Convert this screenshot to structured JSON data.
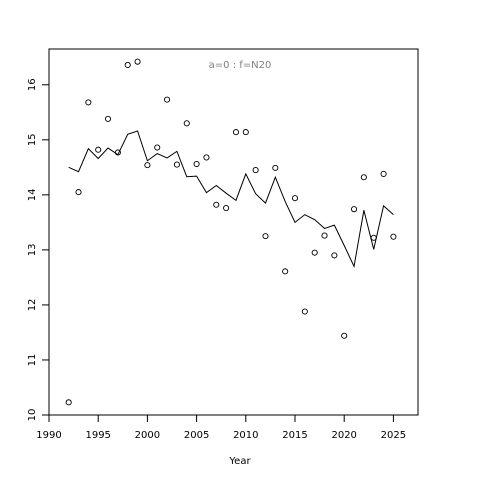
{
  "chart_data": {
    "type": "line",
    "title": "",
    "annotation": "a=0  :  f=N20",
    "xlabel": "Year",
    "ylabel": "",
    "xlim": [
      1990,
      2027.5
    ],
    "ylim": [
      10,
      16.65
    ],
    "xticks": [
      1990,
      1995,
      2000,
      2005,
      2010,
      2015,
      2020,
      2025
    ],
    "yticks": [
      10,
      11,
      12,
      13,
      14,
      15,
      16
    ],
    "grid": false,
    "legend": "none",
    "series": [
      {
        "kind": "points",
        "x": [
          1992,
          1993,
          1994,
          1995,
          1996,
          1997,
          1998,
          1999,
          2000,
          2001,
          2002,
          2003,
          2004,
          2005,
          2006,
          2007,
          2008,
          2009,
          2010,
          2011,
          2012,
          2013,
          2014,
          2015,
          2016,
          2017,
          2018,
          2019,
          2020,
          2021,
          2022,
          2023,
          2024,
          2025
        ],
        "y": [
          10.23,
          14.05,
          15.68,
          14.82,
          15.38,
          14.77,
          16.36,
          16.42,
          14.54,
          14.86,
          15.73,
          14.55,
          15.3,
          14.56,
          14.68,
          13.82,
          13.76,
          15.14,
          15.14,
          14.45,
          13.25,
          14.49,
          12.61,
          13.94,
          11.88,
          12.95,
          13.26,
          12.9,
          11.44,
          13.74,
          14.32,
          13.22,
          14.38,
          13.24
        ]
      },
      {
        "kind": "line",
        "x": [
          1992,
          1993,
          1994,
          1995,
          1996,
          1997,
          1998,
          1999,
          2000,
          2001,
          2002,
          2003,
          2004,
          2005,
          2006,
          2007,
          2008,
          2009,
          2010,
          2011,
          2012,
          2013,
          2014,
          2015,
          2016,
          2017,
          2018,
          2019,
          2020,
          2021,
          2022,
          2023,
          2024,
          2025
        ],
        "y": [
          14.5,
          14.42,
          14.84,
          14.66,
          14.85,
          14.73,
          15.1,
          15.16,
          14.62,
          14.75,
          14.67,
          14.79,
          14.33,
          14.34,
          14.04,
          14.17,
          14.03,
          13.9,
          14.38,
          14.02,
          13.85,
          14.32,
          13.88,
          13.5,
          13.64,
          13.55,
          13.39,
          13.45,
          13.08,
          12.7,
          13.72,
          13.01,
          13.8,
          13.64
        ]
      }
    ]
  }
}
